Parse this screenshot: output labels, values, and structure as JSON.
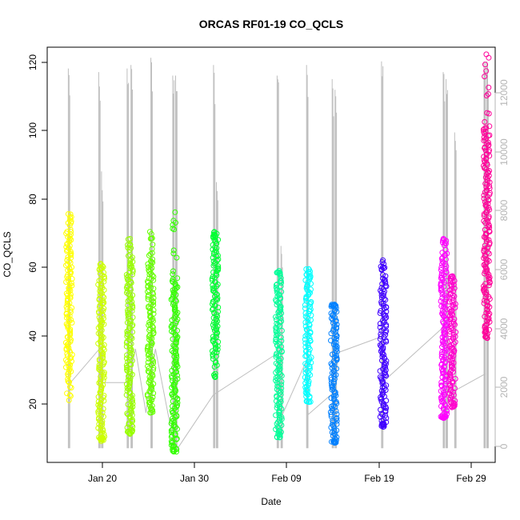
{
  "chart_data": {
    "type": "scatter",
    "title": "ORCAS RF01-19 CO_QCLS",
    "xlabel": "Date",
    "ylabel": "CO_QCLS",
    "x_ticks": [
      "Jan 20",
      "Jan 30",
      "Feb 09",
      "Feb 19",
      "Feb 29"
    ],
    "y_ticks": [
      "20",
      "40",
      "60",
      "80",
      "100",
      "120"
    ],
    "y2_ticks": [
      "0",
      "2000",
      "4000",
      "6000",
      "8000",
      "10000",
      "12000"
    ],
    "xlim_days_jan_1": [
      13.3,
      60.5
    ],
    "ylim": [
      5,
      122
    ],
    "y2lim": [
      -200,
      12600
    ],
    "grid": false,
    "secondary_series": {
      "name": "",
      "color": "#bebebe",
      "description_values": "altitude-like secondary axis (0-12000)",
      "flight_spikes": [
        {
          "x": 15.6,
          "ymin": 9,
          "ymax": 116
        },
        {
          "x": 18.8,
          "ymin": 9,
          "ymax": 115
        },
        {
          "x": 19.1,
          "ymin": 9,
          "ymax": 87
        },
        {
          "x": 21.8,
          "ymin": 9,
          "ymax": 116
        },
        {
          "x": 22.2,
          "ymin": 9,
          "ymax": 117
        },
        {
          "x": 24.3,
          "ymin": 9,
          "ymax": 119
        },
        {
          "x": 26.6,
          "ymin": 9,
          "ymax": 114
        },
        {
          "x": 26.9,
          "ymin": 9,
          "ymax": 114
        },
        {
          "x": 30.9,
          "ymin": 9,
          "ymax": 117
        },
        {
          "x": 31.2,
          "ymin": 9,
          "ymax": 84
        },
        {
          "x": 37.6,
          "ymin": 9,
          "ymax": 114
        },
        {
          "x": 38.0,
          "ymin": 9,
          "ymax": 66
        },
        {
          "x": 40.7,
          "ymin": 9,
          "ymax": 117
        },
        {
          "x": 43.4,
          "ymin": 9,
          "ymax": 113
        },
        {
          "x": 43.7,
          "ymin": 9,
          "ymax": 110
        },
        {
          "x": 48.6,
          "ymin": 9,
          "ymax": 118
        },
        {
          "x": 55.1,
          "ymin": 9,
          "ymax": 115
        },
        {
          "x": 55.4,
          "ymin": 9,
          "ymax": 113
        },
        {
          "x": 56.3,
          "ymin": 9,
          "ymax": 98
        },
        {
          "x": 59.4,
          "ymin": 9,
          "ymax": 118
        },
        {
          "x": 59.7,
          "ymin": 9,
          "ymax": 118
        }
      ],
      "connectors": [
        [
          15.6,
          27
        ],
        [
          18.8,
          37
        ],
        [
          19.0,
          27.5
        ],
        [
          21.9,
          27.5
        ],
        [
          22.6,
          37
        ],
        [
          23.7,
          19
        ],
        [
          24.7,
          37
        ],
        [
          26.8,
          8
        ],
        [
          30.8,
          24
        ],
        [
          37.7,
          36
        ],
        [
          38.0,
          18
        ],
        [
          40.5,
          33
        ],
        [
          40.8,
          18.5
        ],
        [
          43.6,
          25
        ],
        [
          44.0,
          36
        ],
        [
          48.6,
          40.5
        ],
        [
          48.8,
          28
        ],
        [
          55.0,
          43
        ],
        [
          55.3,
          51
        ],
        [
          55.9,
          21
        ],
        [
          56.1,
          25
        ],
        [
          59.5,
          30
        ]
      ]
    },
    "series": [
      {
        "name": "",
        "color": "#ffff00",
        "x": 15.6,
        "ymin": 22.5,
        "ymax": 75,
        "core_min": 30,
        "core_max": 70
      },
      {
        "name": "",
        "color": "#ccff00",
        "x": 19.0,
        "ymin": 11,
        "ymax": 61,
        "core_min": 12,
        "core_max": 58
      },
      {
        "name": "",
        "color": "#99ff00",
        "x": 22.0,
        "ymin": 13,
        "ymax": 68,
        "core_min": 14,
        "core_max": 63
      },
      {
        "name": "",
        "color": "#66ff00",
        "x": 24.2,
        "ymin": 19,
        "ymax": 70,
        "core_min": 22,
        "core_max": 62
      },
      {
        "name": "",
        "color": "#33ff00",
        "x": 26.7,
        "ymin": 8,
        "ymax": 75.5,
        "core_min": 10,
        "core_max": 57
      },
      {
        "name": "",
        "color": "#00ff33",
        "x": 31.0,
        "ymin": 29,
        "ymax": 70,
        "core_min": 35,
        "core_max": 68
      },
      {
        "name": "",
        "color": "#00ff99",
        "x": 37.7,
        "ymin": 12,
        "ymax": 59,
        "core_min": 14,
        "core_max": 56
      },
      {
        "name": "",
        "color": "#00ffff",
        "x": 40.8,
        "ymin": 22,
        "ymax": 59.5,
        "core_min": 24,
        "core_max": 57
      },
      {
        "name": "",
        "color": "#0080ff",
        "x": 43.5,
        "ymin": 10.5,
        "ymax": 49.5,
        "core_min": 11,
        "core_max": 49
      },
      {
        "name": "",
        "color": "#4000ff",
        "x": 48.7,
        "ymin": 15,
        "ymax": 62,
        "core_min": 16,
        "core_max": 57
      },
      {
        "name": "",
        "color": "#ff00ff",
        "x": 55.1,
        "ymin": 17.5,
        "ymax": 68,
        "core_min": 18,
        "core_max": 64
      },
      {
        "name": "",
        "color": "#ff00cc",
        "x": 56.0,
        "ymin": 20.5,
        "ymax": 57.5,
        "core_min": 22,
        "core_max": 55
      },
      {
        "name": "",
        "color": "#ff0099",
        "x": 59.6,
        "ymin": 40,
        "ymax": 120,
        "core_min": 42,
        "core_max": 100
      }
    ]
  }
}
